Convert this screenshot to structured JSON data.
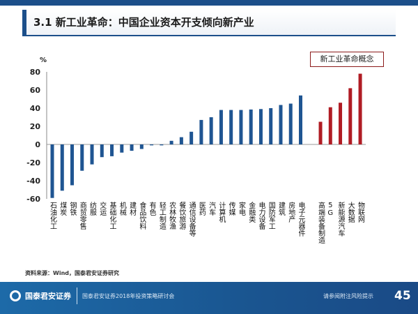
{
  "slide": {
    "title": "3.1 新工业革命：中国企业资本开支倾向新产业",
    "source": "资料来源：Wind，国泰君安证券研究",
    "brand": "国泰君安证券",
    "event": "国泰君安证券2018年投资策略研讨会",
    "notice": "请参阅附注风险提示",
    "page": "45"
  },
  "chart_data": {
    "type": "bar",
    "ylabel": "%",
    "ylim": [
      -60,
      80
    ],
    "yticks": [
      "80",
      "60",
      "40",
      "20",
      "0",
      "-20",
      "-40",
      "-60"
    ],
    "grid": false,
    "annotation": "新工业革命概念",
    "colors": {
      "traditional": "#1f5592",
      "new_industry": "#b01c24"
    },
    "series": [
      {
        "group": "traditional",
        "categories": [
          "石油化工",
          "煤炭",
          "钢铁",
          "商贸零售",
          "纺服",
          "交运",
          "基础化工",
          "机械",
          "建材",
          "食品饮料",
          "有色",
          "轻工制造",
          "农林牧渔",
          "餐饮旅游",
          "通信设备等",
          "医药",
          "汽车",
          "计算机",
          "传媒",
          "家电",
          "金融类",
          "电力设备",
          "国防军工",
          "建筑",
          "房地产",
          "电子元器件"
        ],
        "values": [
          -59,
          -51,
          -45,
          -29,
          -22,
          -14,
          -13,
          -9,
          -7,
          -5,
          -1,
          -1,
          4,
          8,
          14,
          27,
          30,
          38,
          38,
          38,
          38.5,
          39,
          40,
          43.5,
          45,
          54
        ]
      },
      {
        "group": "new_industry",
        "categories": [
          "高端装备制造",
          "5G",
          "新能源汽车",
          "大数据",
          "物联网"
        ],
        "values": [
          25,
          41,
          46,
          62,
          78
        ]
      }
    ]
  }
}
